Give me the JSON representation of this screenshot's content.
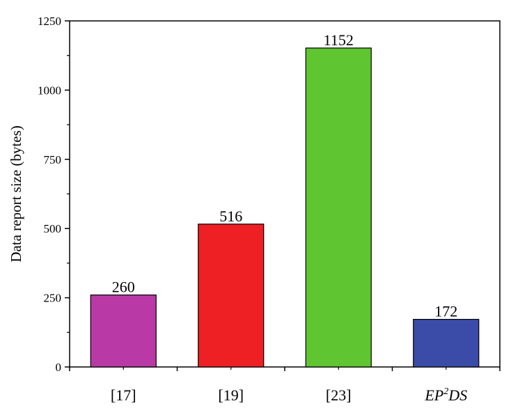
{
  "chart_data": {
    "type": "bar",
    "categories": [
      "[17]",
      "[19]",
      "[23]",
      "EP²DS"
    ],
    "category_parts": [
      {
        "text": "[17]",
        "italic": false
      },
      {
        "text": "[19]",
        "italic": false
      },
      {
        "text": "[23]",
        "italic": false
      },
      {
        "text": "EP",
        "sup": "2",
        "tail": "DS",
        "italic": true
      }
    ],
    "values": [
      260,
      516,
      1152,
      172
    ],
    "data_labels": [
      "260",
      "516",
      "1152",
      "172"
    ],
    "colors": [
      "#b93aa6",
      "#ee2024",
      "#5fc531",
      "#3a4ca8"
    ],
    "title": "",
    "xlabel": "",
    "ylabel": "Data report size (bytes)",
    "ylim": [
      0,
      1250
    ],
    "yticks": [
      0,
      250,
      500,
      750,
      1000,
      1250
    ],
    "ytick_labels": [
      "0",
      "250",
      "500",
      "750",
      "1000",
      "1250"
    ],
    "grid": false,
    "legend": "none"
  }
}
